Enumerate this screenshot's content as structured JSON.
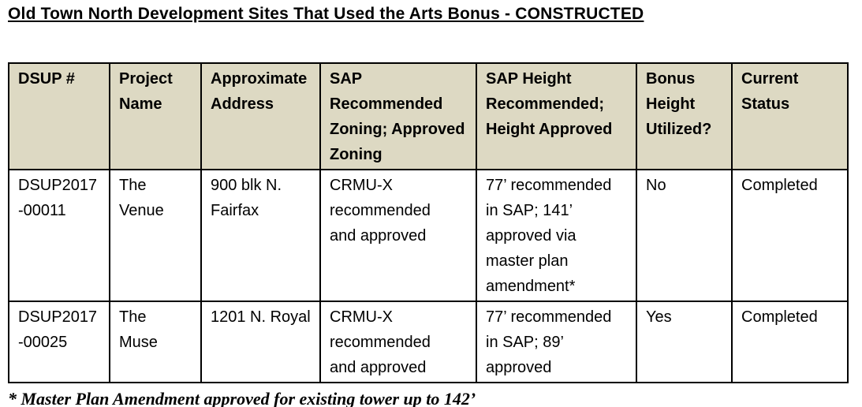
{
  "page": {
    "title": "Old Town North Development Sites That Used the Arts Bonus - CONSTRUCTED",
    "footnote": "* Master Plan Amendment approved for existing tower up to 142’"
  },
  "theme": {
    "header_bg_color": "#DDD9C3",
    "border_color": "#000000",
    "text_color": "#000000",
    "page_bg_color": "#FFFFFF"
  },
  "table": {
    "columns": [
      "DSUP #",
      "Project\nName",
      "Approximate\nAddress",
      "SAP\nRecommended\nZoning; Approved\nZoning",
      "SAP Height\nRecommended;\nHeight Approved",
      "Bonus\nHeight\nUtilized?",
      "Current\nStatus"
    ],
    "rows": [
      [
        "DSUP2017\n-00011",
        "The\nVenue",
        "900 blk N.\nFairfax",
        "CRMU-X\nrecommended\nand approved",
        "77’ recommended\nin SAP; 141’\napproved via\nmaster plan\namendment*",
        "No",
        "Completed"
      ],
      [
        "DSUP2017\n-00025",
        "The\nMuse",
        "1201 N. Royal",
        "CRMU-X\nrecommended\nand approved",
        "77’ recommended\nin SAP; 89’\napproved",
        "Yes",
        "Completed"
      ]
    ]
  }
}
